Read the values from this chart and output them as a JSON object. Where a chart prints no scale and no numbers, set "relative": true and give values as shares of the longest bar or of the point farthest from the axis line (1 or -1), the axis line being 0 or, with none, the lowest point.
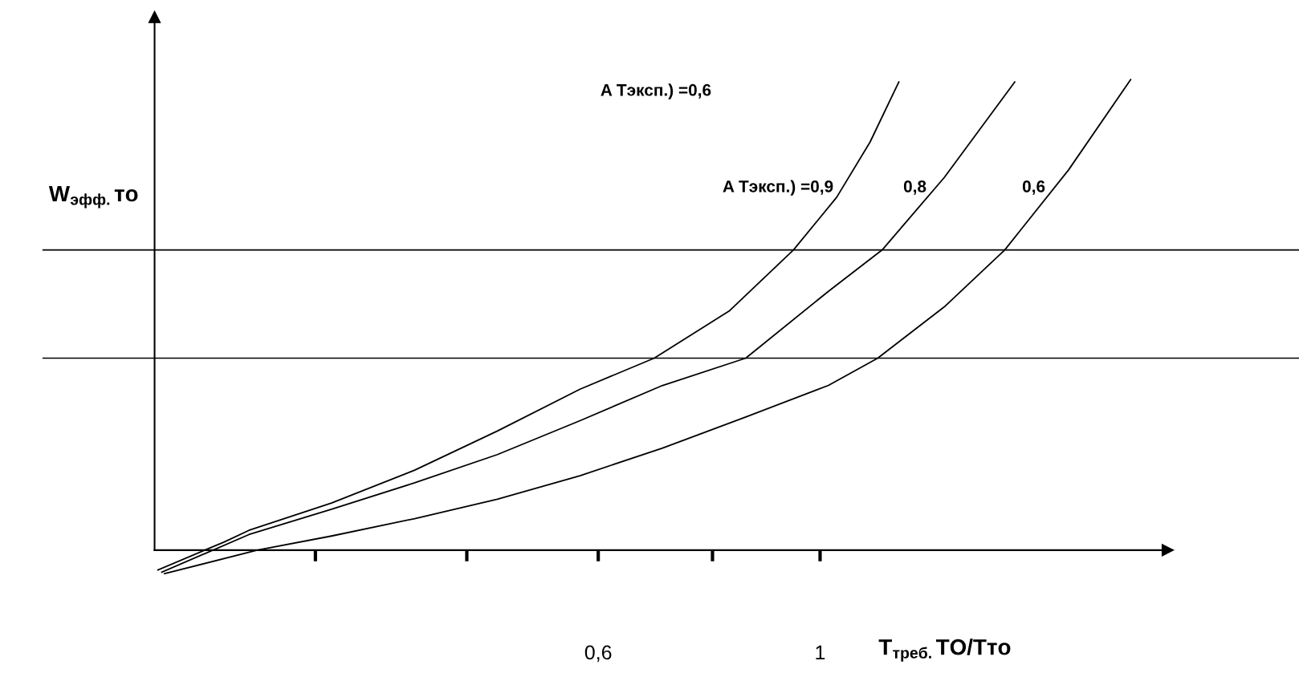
{
  "chart_data": {
    "type": "line",
    "relative": true,
    "xlabel": "T$_{треб.}$ТО/Tто",
    "ylabel": "W$_{эфф.}$то",
    "xlim": [
      -0.2,
      1.627
    ],
    "xticks": [
      {
        "value": 0.09,
        "label": null
      },
      {
        "value": 0.363,
        "label": null
      },
      {
        "value": 0.6,
        "label": "0,6"
      },
      {
        "value": 0.806,
        "label": null
      },
      1
    ],
    "ref_lines": [
      {
        "axis": "y",
        "value": 0.638,
        "color": "#000000"
      },
      {
        "axis": "y",
        "value": 0.408,
        "color": "#000000"
      }
    ],
    "annotations": [
      "A Тэксп.) =0,6"
    ],
    "series": [
      {
        "name": "A Тэксп.) =0,9",
        "color": "#000000",
        "x": [
          -0.194,
          -0.075,
          -0.03,
          0.119,
          0.269,
          0.418,
          0.567,
          0.701,
          0.836,
          0.952,
          1.03,
          1.09,
          1.142
        ],
        "values": [
          -0.042,
          0.017,
          0.042,
          0.1,
          0.17,
          0.253,
          0.342,
          0.408,
          0.508,
          0.638,
          0.75,
          0.867,
          0.995
        ]
      },
      {
        "name": "0,8",
        "color": "#000000",
        "x": [
          -0.187,
          -0.03,
          0.119,
          0.269,
          0.418,
          0.567,
          0.716,
          0.866,
          1.015,
          1.112,
          1.224,
          1.351
        ],
        "values": [
          -0.047,
          0.033,
          0.087,
          0.143,
          0.203,
          0.275,
          0.35,
          0.408,
          0.55,
          0.638,
          0.792,
          0.995
        ]
      },
      {
        "name": "0,6",
        "color": "#000000",
        "x": [
          -0.182,
          -0.015,
          0.119,
          0.269,
          0.418,
          0.567,
          0.716,
          0.866,
          1.015,
          1.104,
          1.224,
          1.333,
          1.448,
          1.56
        ],
        "values": [
          -0.05,
          0.0,
          0.03,
          0.067,
          0.108,
          0.158,
          0.217,
          0.283,
          0.35,
          0.408,
          0.517,
          0.638,
          0.808,
          1.0
        ]
      }
    ],
    "line_style": "solid",
    "marker": "none",
    "grid": false,
    "legend": false
  }
}
